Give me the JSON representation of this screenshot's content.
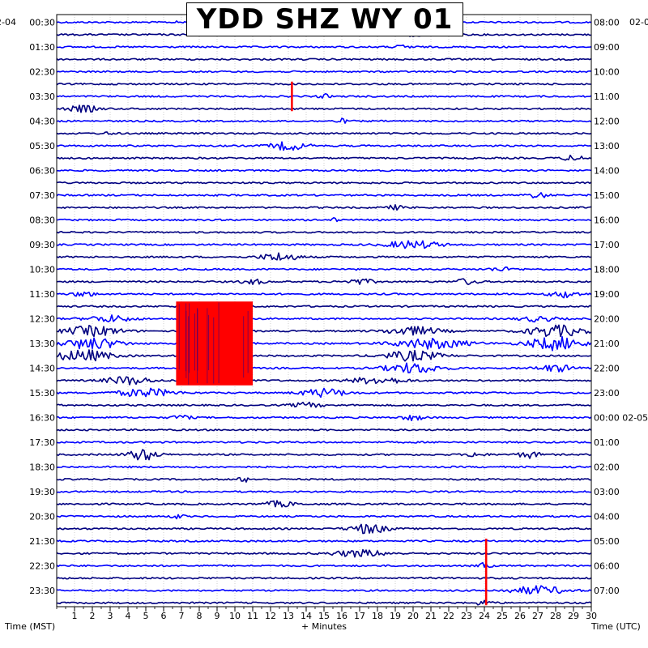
{
  "chart_data": {
    "type": "line",
    "title": "YDD SHZ WY 01",
    "xlabel": "+ Minutes",
    "left_axis_label": "Time (MST)",
    "right_axis_label": "Time (UTC)",
    "start_date_left": "2-04",
    "start_date_right": "02-0",
    "date_change_label": "02-05",
    "x_ticks": [
      1,
      2,
      3,
      4,
      5,
      6,
      7,
      8,
      9,
      10,
      11,
      12,
      13,
      14,
      15,
      16,
      17,
      18,
      19,
      20,
      21,
      22,
      23,
      24,
      25,
      26,
      27,
      28,
      29,
      30
    ],
    "xlim": [
      0,
      30
    ],
    "line_count": 48,
    "rows_per_label": 2,
    "left_labels": [
      "00:30",
      "01:30",
      "02:30",
      "03:30",
      "04:30",
      "05:30",
      "06:30",
      "07:30",
      "08:30",
      "09:30",
      "10:30",
      "11:30",
      "12:30",
      "13:30",
      "14:30",
      "15:30",
      "16:30",
      "17:30",
      "18:30",
      "19:30",
      "20:30",
      "21:30",
      "22:30",
      "23:30"
    ],
    "right_labels": [
      "08:00",
      "09:00",
      "10:00",
      "11:00",
      "12:00",
      "13:00",
      "14:00",
      "15:00",
      "16:00",
      "17:00",
      "18:00",
      "19:00",
      "20:00",
      "21:00",
      "22:00",
      "23:00",
      "00:00",
      "01:00",
      "02:00",
      "03:00",
      "04:00",
      "05:00",
      "06:00",
      "07:00"
    ],
    "trace_colors": [
      "#0000ff",
      "#000080"
    ],
    "clip_color": "#ff0000",
    "clipped_blocks": [
      {
        "line_start": 23,
        "line_end": 29,
        "minute_start": 6.7,
        "minute_end": 11.0
      }
    ],
    "events": [
      {
        "line": 0,
        "minute": 7.0,
        "amp": 1.5,
        "width": 0.3
      },
      {
        "line": 1,
        "minute": 20.0,
        "amp": 2.0,
        "width": 0.4
      },
      {
        "line": 2,
        "minute": 19.5,
        "amp": 2.0,
        "width": 0.5
      },
      {
        "line": 6,
        "minute": 15.0,
        "amp": 2.5,
        "width": 0.3
      },
      {
        "line": 7,
        "minute": 1.5,
        "amp": 4.0,
        "width": 0.8
      },
      {
        "line": 8,
        "minute": 16.0,
        "amp": 2.5,
        "width": 0.3
      },
      {
        "line": 9,
        "minute": 3.0,
        "amp": 2.0,
        "width": 0.3
      },
      {
        "line": 10,
        "minute": 13.0,
        "amp": 5.0,
        "width": 1.0
      },
      {
        "line": 11,
        "minute": 29.0,
        "amp": 3.0,
        "width": 0.6
      },
      {
        "line": 14,
        "minute": 27.0,
        "amp": 3.0,
        "width": 0.6
      },
      {
        "line": 15,
        "minute": 19.0,
        "amp": 2.5,
        "width": 0.5
      },
      {
        "line": 16,
        "minute": 15.5,
        "amp": 2.0,
        "width": 0.3
      },
      {
        "line": 18,
        "minute": 20.0,
        "amp": 4.5,
        "width": 1.5
      },
      {
        "line": 19,
        "minute": 12.5,
        "amp": 5.0,
        "width": 1.0
      },
      {
        "line": 20,
        "minute": 25.0,
        "amp": 2.0,
        "width": 0.8
      },
      {
        "line": 21,
        "minute": 11.0,
        "amp": 3.0,
        "width": 0.6
      },
      {
        "line": 21,
        "minute": 17.0,
        "amp": 3.0,
        "width": 0.8
      },
      {
        "line": 21,
        "minute": 23.0,
        "amp": 3.5,
        "width": 0.6
      },
      {
        "line": 22,
        "minute": 1.5,
        "amp": 3.0,
        "width": 0.6
      },
      {
        "line": 22,
        "minute": 28.5,
        "amp": 4.0,
        "width": 0.8
      },
      {
        "line": 24,
        "minute": 3.0,
        "amp": 4.0,
        "width": 1.2
      },
      {
        "line": 24,
        "minute": 27.0,
        "amp": 3.0,
        "width": 1.0
      },
      {
        "line": 25,
        "minute": 2.0,
        "amp": 6.0,
        "width": 1.5
      },
      {
        "line": 25,
        "minute": 20.0,
        "amp": 5.0,
        "width": 1.5
      },
      {
        "line": 25,
        "minute": 28.0,
        "amp": 7.0,
        "width": 1.5
      },
      {
        "line": 26,
        "minute": 2.0,
        "amp": 7.0,
        "width": 1.5
      },
      {
        "line": 26,
        "minute": 21.0,
        "amp": 6.0,
        "width": 2.0
      },
      {
        "line": 26,
        "minute": 28.0,
        "amp": 8.0,
        "width": 1.5
      },
      {
        "line": 27,
        "minute": 1.5,
        "amp": 7.0,
        "width": 1.5
      },
      {
        "line": 27,
        "minute": 20.0,
        "amp": 6.0,
        "width": 1.5
      },
      {
        "line": 28,
        "minute": 20.0,
        "amp": 6.0,
        "width": 1.5
      },
      {
        "line": 28,
        "minute": 28.0,
        "amp": 4.0,
        "width": 1.0
      },
      {
        "line": 29,
        "minute": 4.0,
        "amp": 5.0,
        "width": 1.2
      },
      {
        "line": 29,
        "minute": 18.0,
        "amp": 4.0,
        "width": 1.5
      },
      {
        "line": 30,
        "minute": 5.0,
        "amp": 5.0,
        "width": 1.5
      },
      {
        "line": 30,
        "minute": 15.0,
        "amp": 5.0,
        "width": 1.2
      },
      {
        "line": 31,
        "minute": 14.0,
        "amp": 3.0,
        "width": 0.8
      },
      {
        "line": 32,
        "minute": 7.0,
        "amp": 3.0,
        "width": 0.5
      },
      {
        "line": 32,
        "minute": 20.0,
        "amp": 3.0,
        "width": 0.6
      },
      {
        "line": 35,
        "minute": 4.8,
        "amp": 7.0,
        "width": 0.8
      },
      {
        "line": 35,
        "minute": 23.5,
        "amp": 3.0,
        "width": 0.5
      },
      {
        "line": 35,
        "minute": 26.5,
        "amp": 4.0,
        "width": 0.6
      },
      {
        "line": 37,
        "minute": 10.5,
        "amp": 3.0,
        "width": 0.3
      },
      {
        "line": 39,
        "minute": 12.5,
        "amp": 3.5,
        "width": 0.8
      },
      {
        "line": 40,
        "minute": 6.8,
        "amp": 3.0,
        "width": 0.3
      },
      {
        "line": 41,
        "minute": 17.5,
        "amp": 6.0,
        "width": 1.0
      },
      {
        "line": 43,
        "minute": 17.0,
        "amp": 4.0,
        "width": 1.5
      },
      {
        "line": 44,
        "minute": 24.0,
        "amp": 4.0,
        "width": 0.3
      },
      {
        "line": 46,
        "minute": 27.0,
        "amp": 5.0,
        "width": 1.5
      },
      {
        "line": 47,
        "minute": 24.0,
        "amp": 3.0,
        "width": 0.5
      }
    ],
    "spikes": [
      {
        "line_start": 5,
        "line_end": 7,
        "minute": 13.2
      },
      {
        "line_start": 42,
        "line_end": 47,
        "minute": 24.1
      }
    ]
  }
}
